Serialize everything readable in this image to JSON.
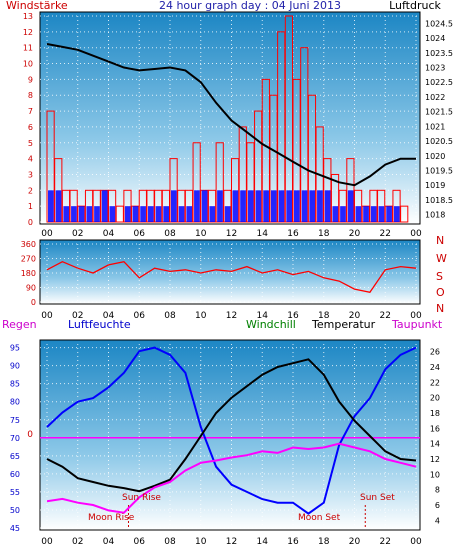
{
  "header": {
    "title": "24 hour graph day : 04 Juni 2013",
    "left_label": "Windstärke",
    "right_label": "Luftdruck"
  },
  "colors": {
    "wind": "#ff0000",
    "gust_blue": "#0000ff",
    "pressure": "#000000",
    "humidity": "#0000ff",
    "temperature": "#000000",
    "dewpoint": "#ff00ff",
    "windchill": "#008000",
    "rain": "#ff00ff",
    "sky_top": "#1c86c4",
    "sky_bottom": "#ffffff"
  },
  "chart_data": [
    {
      "type": "bar",
      "name_left": "Windstärke",
      "name_right": "Luftdruck",
      "x_ticks": [
        "00",
        "02",
        "04",
        "06",
        "08",
        "10",
        "12",
        "14",
        "16",
        "18",
        "20",
        "22",
        "00"
      ],
      "y_left_ticks": [
        "0",
        "1",
        "2",
        "3",
        "4",
        "5",
        "6",
        "7",
        "8",
        "9",
        "10",
        "11",
        "12",
        "13"
      ],
      "y_left_lim": [
        0,
        13
      ],
      "y_right_ticks": [
        "1018",
        "1018.5",
        "1019",
        "1019.5",
        "1020",
        "1020.5",
        "1021",
        "1021.5",
        "1022",
        "1022.5",
        "1023",
        "1023.5",
        "1024",
        "1024.5"
      ],
      "y_right_lim": [
        1017.75,
        1024.75
      ],
      "pressure_series": {
        "x": [
          0,
          1,
          2,
          3,
          4,
          5,
          6,
          7,
          8,
          9,
          10,
          11,
          12,
          13,
          14,
          15,
          16,
          17,
          18,
          19,
          20,
          21,
          22,
          23,
          24
        ],
        "values": [
          1023.8,
          1023.7,
          1023.6,
          1023.4,
          1023.2,
          1023.0,
          1022.9,
          1022.95,
          1023.0,
          1022.9,
          1022.5,
          1021.8,
          1021.2,
          1020.8,
          1020.4,
          1020.1,
          1019.8,
          1019.5,
          1019.3,
          1019.1,
          1019.0,
          1019.3,
          1019.7,
          1019.9,
          1019.9
        ]
      },
      "wind_hours": [
        0,
        0.5,
        1,
        1.5,
        2,
        2.5,
        3,
        3.5,
        4,
        4.5,
        5,
        5.5,
        6,
        6.5,
        7,
        7.5,
        8,
        8.5,
        9,
        9.5,
        10,
        10.5,
        11,
        11.5,
        12,
        12.5,
        13,
        13.5,
        14,
        14.5,
        15,
        15.5,
        16,
        16.5,
        17,
        17.5,
        18,
        18.5,
        19,
        19.5,
        20,
        20.5,
        21,
        21.5,
        22,
        22.5,
        23,
        23.5
      ],
      "wind_values": [
        7,
        4,
        2,
        2,
        1,
        2,
        2,
        2,
        2,
        1,
        2,
        1,
        2,
        2,
        2,
        2,
        4,
        2,
        2,
        5,
        2,
        2,
        5,
        2,
        4,
        6,
        5,
        7,
        9,
        8,
        12,
        13,
        9,
        11,
        8,
        6,
        4,
        3,
        2,
        4,
        2,
        1,
        2,
        2,
        1,
        2,
        1,
        0
      ],
      "gust_values": [
        2,
        2,
        1,
        1,
        1,
        1,
        1,
        2,
        1,
        0,
        1,
        1,
        1,
        1,
        1,
        1,
        2,
        1,
        1,
        2,
        2,
        1,
        2,
        1,
        2,
        2,
        2,
        2,
        2,
        2,
        2,
        2,
        2,
        2,
        2,
        2,
        2,
        1,
        1,
        2,
        1,
        1,
        1,
        1,
        1,
        1,
        0,
        0
      ]
    },
    {
      "type": "line",
      "x_ticks": [
        "00",
        "02",
        "04",
        "06",
        "08",
        "10",
        "12",
        "14",
        "16",
        "18",
        "20",
        "22",
        "00"
      ],
      "y_left_ticks": [
        "0",
        "90",
        "180",
        "270",
        "360"
      ],
      "y_left_lim": [
        0,
        360
      ],
      "y_right_labels": [
        "N",
        "W",
        "S",
        "O",
        "N"
      ],
      "direction_x": [
        0,
        1,
        2,
        3,
        4,
        5,
        6,
        7,
        8,
        9,
        10,
        11,
        12,
        13,
        14,
        15,
        16,
        17,
        18,
        19,
        20,
        21,
        22,
        23,
        24
      ],
      "direction_values": [
        200,
        250,
        210,
        180,
        230,
        250,
        150,
        210,
        190,
        200,
        180,
        200,
        190,
        220,
        180,
        200,
        170,
        190,
        150,
        130,
        80,
        60,
        200,
        220,
        210
      ]
    },
    {
      "type": "line",
      "series_labels": [
        "Regen",
        "Luftfeuchte",
        "Windchill",
        "Temperatur",
        "Taupunkt"
      ],
      "x_ticks": [
        "00",
        "02",
        "04",
        "06",
        "08",
        "10",
        "12",
        "14",
        "16",
        "18",
        "20",
        "22",
        "00"
      ],
      "y_left_ticks": [
        "45",
        "50",
        "55",
        "60",
        "65",
        "70",
        "75",
        "80",
        "85",
        "90",
        "95"
      ],
      "y_left_lim": [
        45,
        96
      ],
      "y_right_ticks": [
        "4",
        "6",
        "8",
        "10",
        "12",
        "14",
        "16",
        "18",
        "20",
        "22",
        "24",
        "26"
      ],
      "y_right_lim": [
        3,
        27
      ],
      "rain_line_label": "0",
      "hours": [
        0,
        1,
        2,
        3,
        4,
        5,
        6,
        7,
        8,
        9,
        10,
        11,
        12,
        13,
        14,
        15,
        16,
        17,
        18,
        19,
        20,
        21,
        22,
        23,
        24
      ],
      "humidity": [
        73,
        77,
        80,
        81,
        84,
        88,
        94,
        95,
        93,
        88,
        73,
        62,
        57,
        55,
        53,
        52,
        52,
        49,
        52,
        68,
        76,
        81,
        89,
        93,
        95
      ],
      "temperature": [
        12,
        11,
        9.5,
        9,
        8.5,
        8.2,
        7.8,
        8.5,
        9.3,
        12,
        15,
        18,
        20,
        21.5,
        23,
        24,
        24.5,
        25,
        23,
        19.5,
        17,
        15,
        13,
        12,
        11.8
      ],
      "dewpoint": [
        6.5,
        6.8,
        6.3,
        6.0,
        5.3,
        5.0,
        7.0,
        8.3,
        9.0,
        10.5,
        11.5,
        11.8,
        12.2,
        12.5,
        13.0,
        12.8,
        13.5,
        13.3,
        13.5,
        14.0,
        13.5,
        13.0,
        12.0,
        11.5,
        11.0
      ],
      "annotations": [
        "Moon Rise",
        "Sun Rise",
        "Moon Set",
        "Sun Set"
      ]
    }
  ]
}
